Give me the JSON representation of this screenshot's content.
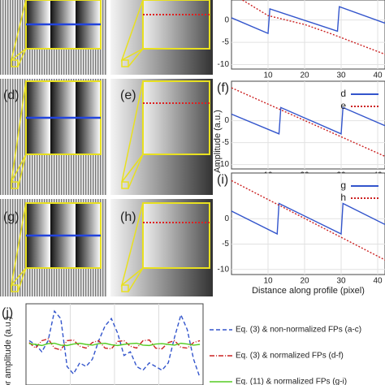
{
  "image_labels": [
    "(d)",
    "(e)",
    "(g)",
    "(h)"
  ],
  "chart_data": [
    {
      "type": "line",
      "xlim": [
        0,
        42
      ],
      "ylim": [
        -11,
        4.5
      ],
      "xticks": [
        10,
        20,
        30,
        40
      ],
      "yticks": [
        0,
        -5,
        -10
      ],
      "grid": true,
      "series": [
        {
          "color": "#3355cc",
          "dash": "none",
          "x": [
            0,
            10,
            10.5,
            29,
            29.5,
            43
          ],
          "values": [
            0.5,
            -3,
            2.5,
            -2.5,
            3,
            -1
          ]
        },
        {
          "color": "#cc2222",
          "dash": "2,2",
          "x": [
            0,
            10,
            20,
            27,
            43
          ],
          "values": [
            6,
            1,
            -1,
            -3,
            -8
          ]
        }
      ]
    },
    {
      "type": "line",
      "label": "(f)",
      "ylabel": "Amplitude (a.u.)",
      "xlim": [
        0,
        42
      ],
      "ylim": [
        -11,
        9
      ],
      "xticks": [
        10,
        20,
        30,
        40
      ],
      "yticks": [
        0,
        -5,
        -10
      ],
      "grid": true,
      "series": [
        {
          "name": "d",
          "color": "#3355cc",
          "dash": "none",
          "x": [
            0,
            13,
            13.5,
            30,
            30.5,
            43
          ],
          "values": [
            1.5,
            -3,
            3,
            -3,
            3,
            -1.5
          ]
        },
        {
          "name": "e",
          "color": "#cc2222",
          "dash": "2,2",
          "x": [
            0,
            43
          ],
          "values": [
            7.5,
            -8.5
          ]
        }
      ]
    },
    {
      "type": "line",
      "label": "(i)",
      "xlabel": "Distance along profile (pixel)",
      "xlim": [
        0,
        42
      ],
      "ylim": [
        -11,
        9
      ],
      "xticks": [
        10,
        20,
        30,
        40
      ],
      "yticks": [
        0,
        -5,
        -10
      ],
      "grid": true,
      "series": [
        {
          "name": "g",
          "color": "#3355cc",
          "dash": "none",
          "x": [
            0,
            12.5,
            13,
            30,
            30.5,
            43
          ],
          "values": [
            1.5,
            -3,
            3,
            -3,
            3,
            -1.5
          ]
        },
        {
          "name": "h",
          "color": "#cc2222",
          "dash": "2,2",
          "x": [
            0,
            43
          ],
          "values": [
            7.5,
            -8.5
          ]
        }
      ]
    },
    {
      "type": "line",
      "label": "(j)",
      "ylabel": "or amplitude (a.u.)",
      "ylim": [
        -1.1,
        1.1
      ],
      "grid": false,
      "series": [
        {
          "name": "Eq. (3) & non-normalized FPs (a-c)",
          "color": "#3355cc",
          "dash": "5,3",
          "values": [
            0.1,
            0.0,
            -0.2,
            0.1,
            0.9,
            0.7,
            -0.6,
            -0.8,
            -0.5,
            -0.6,
            -0.4,
            0.1,
            0.5,
            0.7,
            0.3,
            -0.3,
            -0.2,
            -0.6,
            -0.7,
            -0.5,
            -0.6,
            -0.7,
            -0.5,
            0.2,
            0.8,
            0.4,
            -0.4,
            -0.9
          ]
        },
        {
          "name": "Eq. (3) & normalized FPs (d-f)",
          "color": "#cc2222",
          "dash": "6,2,1,2",
          "values": [
            0.05,
            -0.1,
            0.1,
            0.15,
            -0.1,
            -0.15,
            0.1,
            0.12,
            -0.05,
            -0.1,
            0.05,
            0.1,
            -0.1,
            -0.12,
            0.08,
            0.1,
            -0.05,
            -0.1,
            0.1,
            0.12,
            -0.1,
            -0.12,
            0.05,
            0.1,
            -0.08,
            -0.1,
            0.05,
            0.1
          ]
        },
        {
          "name": "Eq. (11) & normalized FPs (g-i)",
          "color": "#55cc22",
          "dash": "none",
          "values": [
            0.02,
            0.0,
            -0.03,
            0.02,
            0.03,
            -0.02,
            -0.03,
            0.01,
            0.03,
            0.0,
            -0.02,
            0.02,
            0.03,
            -0.01,
            -0.03,
            0.0,
            0.02,
            0.03,
            -0.02,
            -0.03,
            0.01,
            0.02,
            0.0,
            -0.02,
            0.03,
            0.01,
            -0.02,
            0.0
          ]
        }
      ]
    }
  ]
}
